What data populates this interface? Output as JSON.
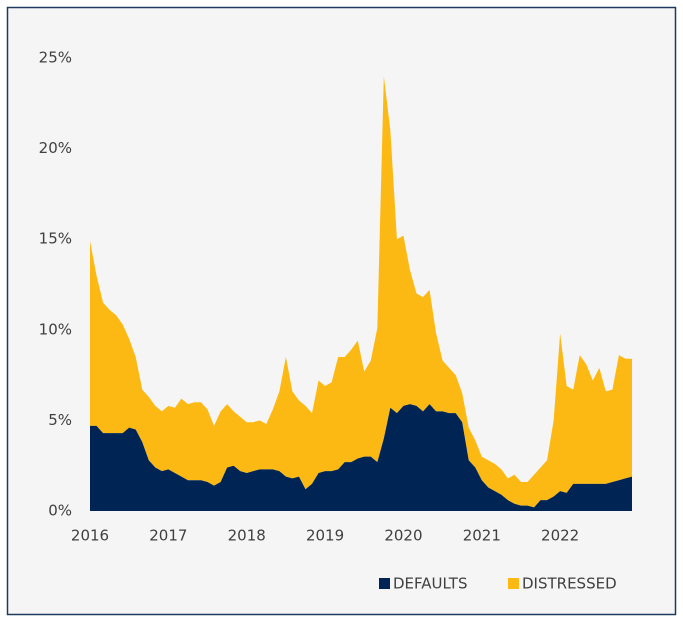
{
  "chart_data": {
    "type": "stacked-area",
    "x": [
      2016,
      2016.083,
      2016.167,
      2016.25,
      2016.333,
      2016.417,
      2016.5,
      2016.583,
      2016.667,
      2016.75,
      2016.833,
      2016.917,
      2017,
      2017.083,
      2017.167,
      2017.25,
      2017.333,
      2017.417,
      2017.5,
      2017.583,
      2017.667,
      2017.75,
      2017.833,
      2017.917,
      2018,
      2018.083,
      2018.167,
      2018.25,
      2018.333,
      2018.417,
      2018.5,
      2018.583,
      2018.667,
      2018.75,
      2018.833,
      2018.917,
      2019,
      2019.083,
      2019.167,
      2019.25,
      2019.333,
      2019.417,
      2019.5,
      2019.583,
      2019.667,
      2019.75,
      2019.833,
      2019.917,
      2020,
      2020.083,
      2020.167,
      2020.25,
      2020.333,
      2020.417,
      2020.5,
      2020.583,
      2020.667,
      2020.75,
      2020.833,
      2020.917,
      2021,
      2021.083,
      2021.167,
      2021.25,
      2021.333,
      2021.417,
      2021.5,
      2021.583,
      2021.667,
      2021.75,
      2021.833,
      2021.917,
      2022,
      2022.083,
      2022.167,
      2022.25,
      2022.333,
      2022.417,
      2022.5,
      2022.583,
      2022.667,
      2022.75,
      2022.833,
      2022.917
    ],
    "series": [
      {
        "name": "DEFAULTS",
        "color": "#002554",
        "values": [
          4.7,
          4.7,
          4.3,
          4.3,
          4.3,
          4.3,
          4.6,
          4.5,
          3.8,
          2.8,
          2.4,
          2.2,
          2.3,
          2.1,
          1.9,
          1.7,
          1.7,
          1.7,
          1.6,
          1.4,
          1.6,
          2.4,
          2.5,
          2.2,
          2.1,
          2.2,
          2.3,
          2.3,
          2.3,
          2.2,
          1.9,
          1.8,
          1.9,
          1.2,
          1.5,
          2.1,
          2.2,
          2.2,
          2.3,
          2.7,
          2.7,
          2.9,
          3.0,
          3.0,
          2.7,
          4.0,
          5.7,
          5.4,
          5.8,
          5.9,
          5.8,
          5.5,
          5.9,
          5.5,
          5.5,
          5.4,
          5.4,
          4.9,
          2.8,
          2.4,
          1.7,
          1.3,
          1.1,
          0.9,
          0.6,
          0.4,
          0.3,
          0.3,
          0.2,
          0.6,
          0.6,
          0.8,
          1.1,
          1.0,
          1.5,
          1.5,
          1.5,
          1.5,
          1.5,
          1.5,
          1.6,
          1.7,
          1.8,
          1.9
        ]
      },
      {
        "name": "DISTRESSED",
        "color": "#fdb913",
        "values": [
          10.2,
          8.3,
          7.2,
          6.8,
          6.5,
          6.0,
          4.9,
          4.0,
          2.9,
          3.5,
          3.4,
          3.3,
          3.5,
          3.6,
          4.3,
          4.2,
          4.3,
          4.3,
          4.0,
          3.3,
          3.9,
          3.5,
          3.0,
          3.0,
          2.8,
          2.7,
          2.7,
          2.5,
          3.3,
          4.4,
          6.6,
          4.8,
          4.2,
          4.6,
          3.9,
          5.1,
          4.7,
          4.9,
          6.2,
          5.8,
          6.2,
          6.5,
          4.7,
          5.3,
          7.4,
          20.0,
          15.3,
          9.6,
          9.4,
          7.4,
          6.2,
          6.3,
          6.3,
          4.3,
          2.8,
          2.5,
          2.1,
          1.6,
          1.8,
          1.5,
          1.3,
          1.5,
          1.5,
          1.4,
          1.2,
          1.6,
          1.3,
          1.3,
          1.8,
          1.8,
          2.2,
          4.2,
          8.7,
          5.9,
          5.2,
          7.1,
          6.6,
          5.7,
          6.4,
          5.1,
          5.1,
          6.9,
          6.6,
          6.5
        ]
      }
    ],
    "xlim": [
      2016,
      2022.917
    ],
    "xticks": [
      2016,
      2017,
      2018,
      2019,
      2020,
      2021,
      2022
    ],
    "ylim": [
      0,
      25
    ],
    "yticks": [
      {
        "value": 0,
        "label": "0%"
      },
      {
        "value": 5,
        "label": "5%"
      },
      {
        "value": 10,
        "label": "10%"
      },
      {
        "value": 15,
        "label": "15%"
      },
      {
        "value": 20,
        "label": "20%"
      },
      {
        "value": 25,
        "label": "25%"
      }
    ],
    "grid": false,
    "legend": "bottom-right"
  }
}
